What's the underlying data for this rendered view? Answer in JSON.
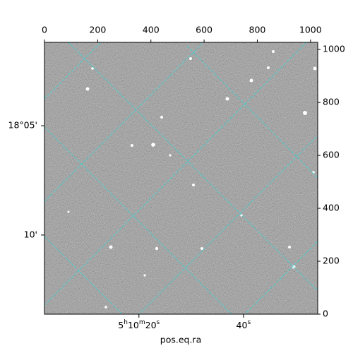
{
  "chart_data": {
    "type": "image",
    "xlabel": "pos.eq.ra",
    "xlim": [
      0,
      1027
    ],
    "ylim": [
      0,
      1027
    ],
    "xticks": [
      0,
      200,
      400,
      600,
      800,
      1000
    ],
    "yticks": [
      0,
      200,
      400,
      600,
      800,
      1000
    ],
    "ra_ticks": [
      {
        "value": 355,
        "label": "5h10m20s"
      },
      {
        "value": 748,
        "label": "40s"
      }
    ],
    "dec_ticks": [
      {
        "value": 712,
        "label": "18°05'"
      },
      {
        "value": 299,
        "label": "10'"
      }
    ]
  }
}
